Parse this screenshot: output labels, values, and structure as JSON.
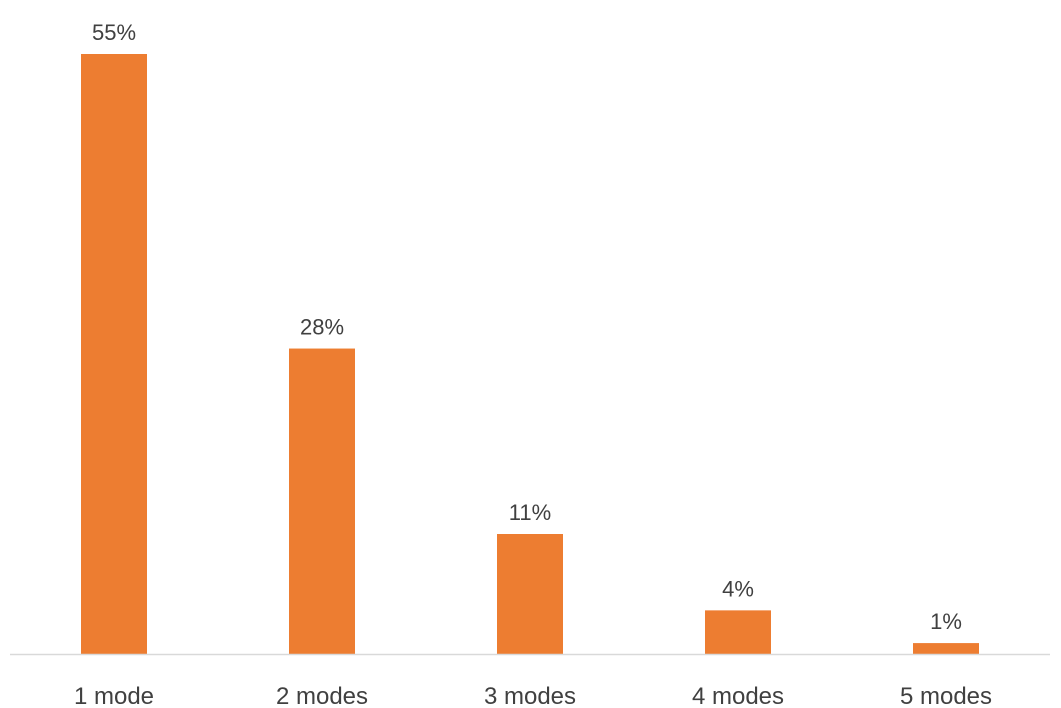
{
  "chart_data": {
    "type": "bar",
    "categories": [
      "1 mode",
      "2 modes",
      "3 modes",
      "4 modes",
      "5 modes"
    ],
    "values": [
      55,
      28,
      11,
      4,
      1
    ],
    "data_labels": [
      "55%",
      "28%",
      "11%",
      "4%",
      "1%"
    ],
    "value_unit": "%",
    "title": "",
    "xlabel": "",
    "ylabel": "",
    "ylim": [
      0,
      55
    ],
    "grid": false,
    "legend": "none",
    "y_axis_visible": false,
    "bar_color": "#ED7D31",
    "axis_color": "#D9D9D9",
    "text_color": "#404040"
  }
}
